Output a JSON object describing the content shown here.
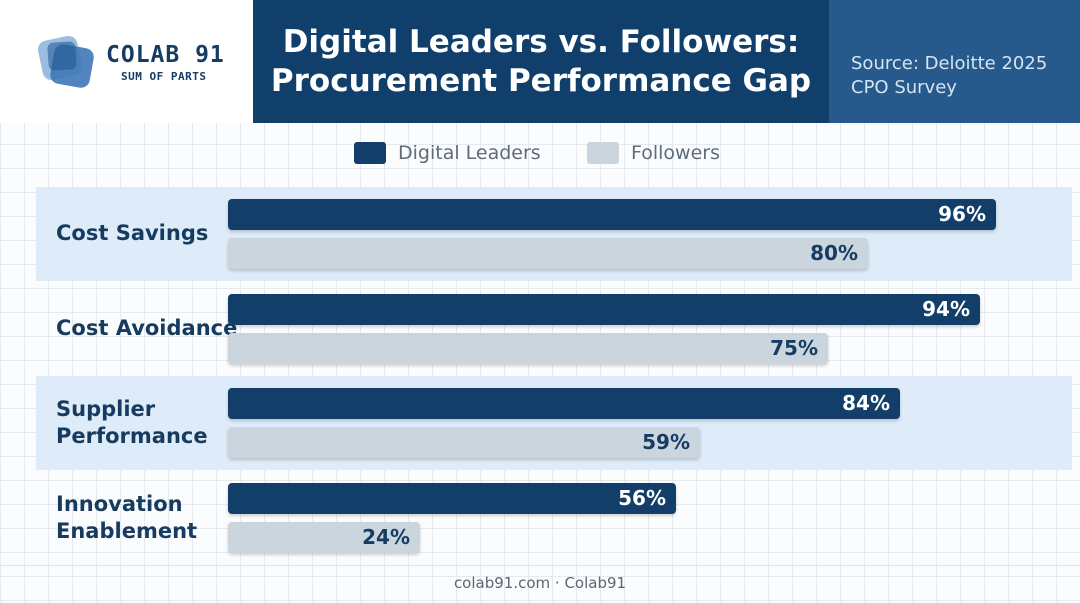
{
  "header": {
    "logo_name": "COLAB 91",
    "logo_tagline": "SUM OF PARTS",
    "title": "Digital Leaders vs. Followers:\nProcurement Performance Gap",
    "source": "Source: Deloitte 2025 CPO Survey"
  },
  "colors": {
    "leaders": "#123e69",
    "followers": "#cad5de",
    "band": "#deebf8"
  },
  "chart_data": {
    "type": "bar",
    "orientation": "horizontal",
    "unit": "%",
    "xlim": [
      0,
      100
    ],
    "categories": [
      "Cost Savings",
      "Cost Avoidance",
      "Supplier Performance",
      "Innovation Enablement"
    ],
    "series": [
      {
        "name": "Digital Leaders",
        "values": [
          96,
          94,
          84,
          56
        ],
        "labels": [
          "96%",
          "94%",
          "84%",
          "56%"
        ]
      },
      {
        "name": "Followers",
        "values": [
          80,
          75,
          59,
          24
        ],
        "labels": [
          "80%",
          "75%",
          "59%",
          "24%"
        ]
      }
    ],
    "legend": "top-center"
  },
  "footer": {
    "text": "colab91.com · Colab91"
  }
}
